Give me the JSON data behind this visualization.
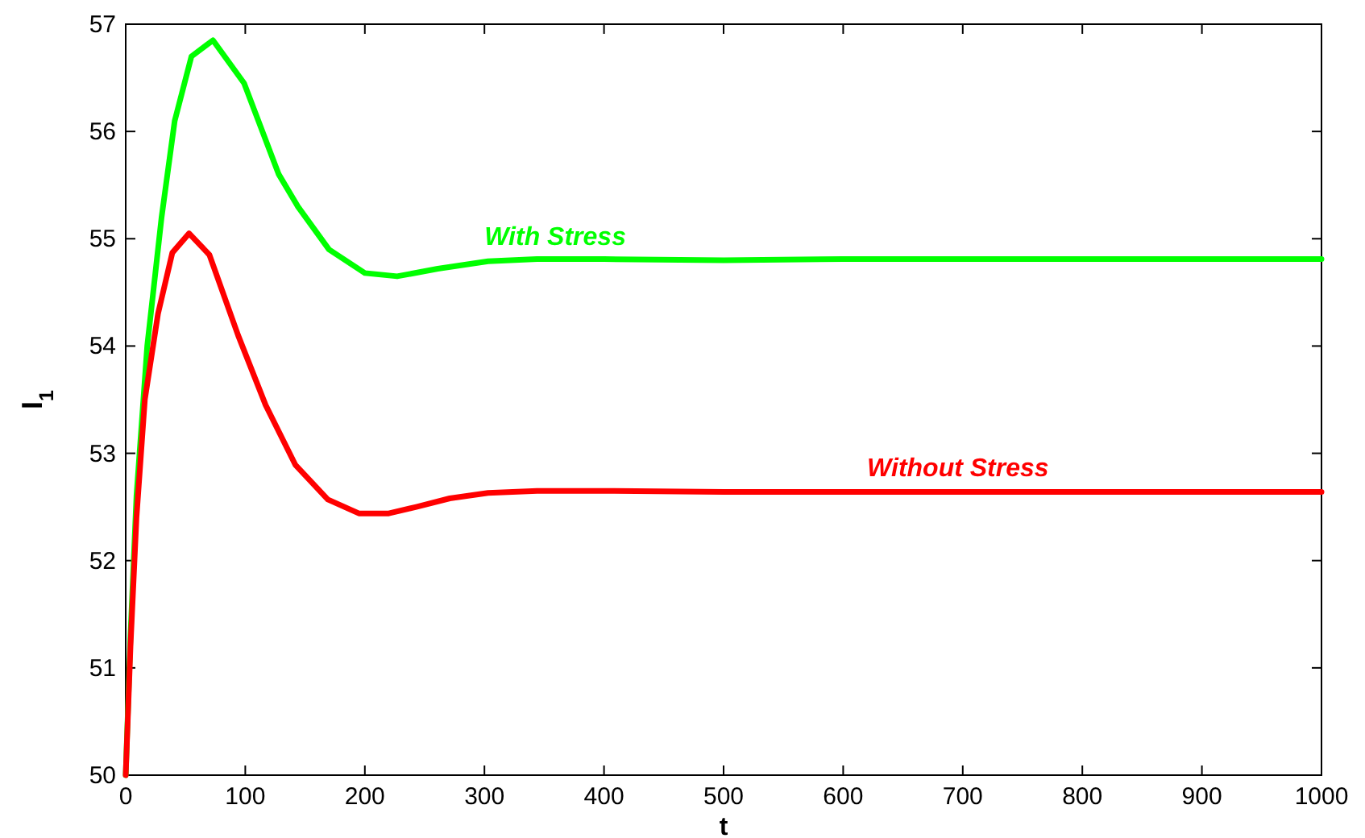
{
  "chart_data": {
    "type": "line",
    "xlabel": "t",
    "ylabel": "I$_{1}$",
    "xlim": [
      0,
      1000
    ],
    "ylim": [
      50,
      57
    ],
    "xticks": [
      0,
      100,
      200,
      300,
      400,
      500,
      600,
      700,
      800,
      900,
      1000
    ],
    "yticks": [
      50,
      51,
      52,
      53,
      54,
      55,
      56,
      57
    ],
    "grid": false,
    "line_style": "solid",
    "marker": "none",
    "series": [
      {
        "name": "With Stress",
        "color": "#00ff00",
        "x": [
          0,
          4,
          9,
          18,
          30,
          41,
          55,
          73,
          99,
          128,
          144,
          170,
          200,
          227,
          261,
          303,
          344,
          400,
          500,
          600,
          700,
          800,
          900,
          1000
        ],
        "values": [
          50,
          51.3,
          52.6,
          54.0,
          55.2,
          56.1,
          56.7,
          56.85,
          56.45,
          55.6,
          55.3,
          54.9,
          54.68,
          54.65,
          54.72,
          54.79,
          54.81,
          54.81,
          54.8,
          54.81,
          54.81,
          54.81,
          54.81,
          54.81
        ]
      },
      {
        "name": "Without Stress",
        "color": "#ff0000",
        "x": [
          0,
          4,
          9,
          16,
          27,
          39,
          53,
          70,
          94,
          117,
          142,
          169,
          195,
          220,
          243,
          271,
          303,
          344,
          400,
          500,
          600,
          700,
          800,
          900,
          1000
        ],
        "values": [
          50,
          51.2,
          52.4,
          53.5,
          54.3,
          54.87,
          55.05,
          54.85,
          54.1,
          53.45,
          52.89,
          52.57,
          52.44,
          52.44,
          52.5,
          52.58,
          52.63,
          52.65,
          52.65,
          52.64,
          52.64,
          52.64,
          52.64,
          52.64,
          52.64
        ]
      }
    ]
  }
}
